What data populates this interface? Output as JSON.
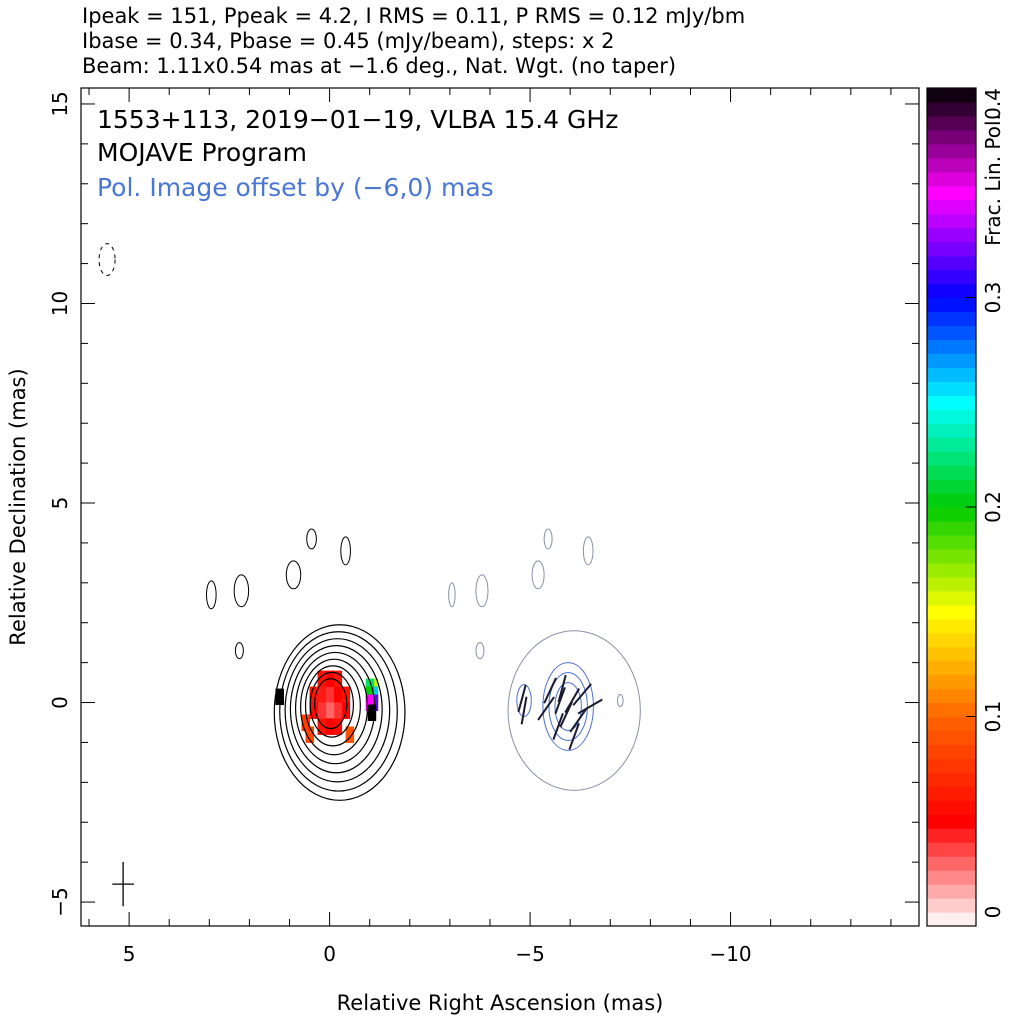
{
  "header": {
    "line1": "Ipeak = 151, Ppeak = 4.2, I RMS = 0.11, P RMS = 0.12 mJy/bm",
    "line2": "Ibase = 0.34, Pbase = 0.45 (mJy/beam), steps: x 2",
    "line3": "Beam: 1.11x0.54 mas at −1.6 deg., Nat. Wgt. (no taper)"
  },
  "colors": {
    "total_intensity_contours": "#000000",
    "polarization_contours": "#4a6fd0",
    "annotation_blue": "#4a77d6",
    "frame": "#000000"
  },
  "chart_data": {
    "type": "heatmap",
    "title_lines": [
      "1553+113, 2019−01−19, VLBA 15.4 GHz",
      "MOJAVE Program"
    ],
    "annotation": "Pol. Image offset by (−6,0) mas",
    "xlabel": "Relative Right Ascension (mas)",
    "ylabel": "Relative Declination (mas)",
    "xlim": [
      6.2,
      -14.7
    ],
    "ylim": [
      -5.6,
      15.4
    ],
    "x_ticks": [
      5,
      0,
      -5,
      -10
    ],
    "x_tick_labels": [
      "5",
      "0",
      "−5",
      "−10"
    ],
    "y_ticks": [
      -5,
      0,
      5,
      10,
      15
    ],
    "y_tick_labels": [
      "−5",
      "0",
      "5",
      "10",
      "15"
    ],
    "x_minor_step": 1,
    "y_minor_step": 1,
    "grid": false,
    "colorbar": {
      "label": "Frac. Lin. Pol.",
      "range": [
        0,
        0.4
      ],
      "ticks": [
        0,
        0.1,
        0.2,
        0.3,
        0.4
      ],
      "tick_labels": [
        "0",
        "0.1",
        "0.2",
        "0.3",
        "0.4"
      ],
      "stops": [
        {
          "v": 0.0,
          "color": "#ffffff"
        },
        {
          "v": 0.05,
          "color": "#ff0000"
        },
        {
          "v": 0.1,
          "color": "#ff6600"
        },
        {
          "v": 0.15,
          "color": "#ffff00"
        },
        {
          "v": 0.2,
          "color": "#00cc00"
        },
        {
          "v": 0.25,
          "color": "#00ffff"
        },
        {
          "v": 0.3,
          "color": "#0000ff"
        },
        {
          "v": 0.35,
          "color": "#ff00ff"
        },
        {
          "v": 0.4,
          "color": "#000000"
        }
      ]
    },
    "stokes_i_core": {
      "x": 0.0,
      "y": 0.0
    },
    "polarization_center": {
      "x": -6.0,
      "y": 0.0
    },
    "i_contour_levels": 9,
    "p_contour_levels": 3,
    "beam": {
      "x": 5.15,
      "y": -4.55,
      "major": 1.11,
      "minor": 0.54,
      "pa": -1.6
    },
    "frac_pol_pixels": [
      {
        "x": -0.4,
        "y": 0.2,
        "v": 0.06
      },
      {
        "x": -0.2,
        "y": 0.2,
        "v": 0.05
      },
      {
        "x": 0.0,
        "y": 0.2,
        "v": 0.04
      },
      {
        "x": 0.2,
        "y": 0.2,
        "v": 0.045
      },
      {
        "x": 0.4,
        "y": 0.2,
        "v": 0.06
      },
      {
        "x": -0.4,
        "y": -0.2,
        "v": 0.05
      },
      {
        "x": -0.2,
        "y": -0.2,
        "v": 0.04
      },
      {
        "x": 0.0,
        "y": -0.2,
        "v": 0.03
      },
      {
        "x": 0.2,
        "y": -0.2,
        "v": 0.04
      },
      {
        "x": 0.4,
        "y": -0.2,
        "v": 0.055
      },
      {
        "x": -0.2,
        "y": 0.6,
        "v": 0.06
      },
      {
        "x": 0.0,
        "y": 0.6,
        "v": 0.05
      },
      {
        "x": 0.2,
        "y": 0.6,
        "v": 0.06
      },
      {
        "x": -0.2,
        "y": -0.6,
        "v": 0.055
      },
      {
        "x": 0.0,
        "y": -0.6,
        "v": 0.05
      },
      {
        "x": 0.2,
        "y": -0.6,
        "v": 0.06
      },
      {
        "x": -0.5,
        "y": -0.8,
        "v": 0.09
      },
      {
        "x": 0.5,
        "y": -0.8,
        "v": 0.085
      },
      {
        "x": 0.6,
        "y": -0.5,
        "v": 0.08
      },
      {
        "x": -1.1,
        "y": 0.4,
        "v": 0.16
      },
      {
        "x": -1.0,
        "y": 0.4,
        "v": 0.22
      },
      {
        "x": -1.1,
        "y": 0.2,
        "v": 0.26
      },
      {
        "x": -1.0,
        "y": 0.2,
        "v": 0.2
      },
      {
        "x": -1.1,
        "y": 0.0,
        "v": 0.32
      },
      {
        "x": -1.0,
        "y": 0.0,
        "v": 0.35
      },
      {
        "x": -1.05,
        "y": -0.25,
        "v": 0.4
      },
      {
        "x": 1.25,
        "y": 0.15,
        "v": 0.4
      }
    ],
    "evpa_vectors": [
      {
        "x": -4.8,
        "y": 0.1,
        "angle": 15
      },
      {
        "x": -4.85,
        "y": -0.2,
        "angle": 10
      },
      {
        "x": -5.4,
        "y": -0.15,
        "angle": 35
      },
      {
        "x": -5.5,
        "y": 0.3,
        "angle": 25
      },
      {
        "x": -5.7,
        "y": -0.6,
        "angle": 20
      },
      {
        "x": -5.75,
        "y": 0.05,
        "angle": 20
      },
      {
        "x": -5.8,
        "y": 0.35,
        "angle": 15
      },
      {
        "x": -5.9,
        "y": -0.3,
        "angle": 25
      },
      {
        "x": -6.05,
        "y": 0.05,
        "angle": 30
      },
      {
        "x": -6.1,
        "y": -0.85,
        "angle": 20
      },
      {
        "x": -6.2,
        "y": -0.45,
        "angle": 35
      },
      {
        "x": -6.3,
        "y": 0.2,
        "angle": 40
      },
      {
        "x": -6.5,
        "y": -0.1,
        "angle": 60
      }
    ]
  }
}
